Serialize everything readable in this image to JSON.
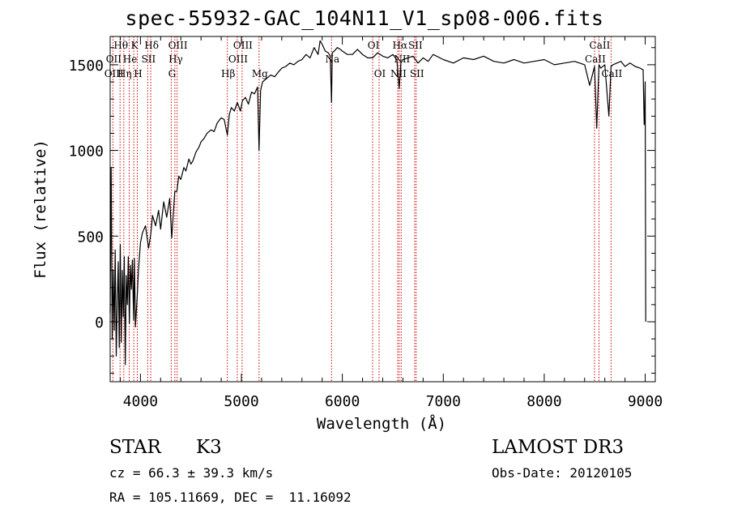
{
  "chart_data": {
    "type": "line",
    "title": "spec-55932-GAC_104N11_V1_sp08-006.fits",
    "xlabel": "Wavelength (Å)",
    "ylabel": "Flux (relative)",
    "xlim": [
      3700,
      9100
    ],
    "ylim": [
      -350,
      1665
    ],
    "x_ticks": [
      4000,
      5000,
      6000,
      7000,
      8000,
      9000
    ],
    "x_tick_labels": [
      "4000",
      "5000",
      "6000",
      "7000",
      "8000",
      "9000"
    ],
    "y_ticks": [
      0,
      500,
      1000,
      1500
    ],
    "y_tick_labels": [
      "0",
      "500",
      "1000",
      "1500"
    ],
    "series": [
      {
        "name": "flux",
        "x": [
          3700,
          3710,
          3720,
          3730,
          3740,
          3750,
          3760,
          3770,
          3780,
          3790,
          3800,
          3810,
          3820,
          3830,
          3840,
          3850,
          3860,
          3870,
          3880,
          3890,
          3900,
          3910,
          3920,
          3933,
          3940,
          3950,
          3968,
          3980,
          4000,
          4020,
          4050,
          4080,
          4102,
          4120,
          4150,
          4180,
          4200,
          4230,
          4260,
          4290,
          4310,
          4340,
          4360,
          4380,
          4400,
          4430,
          4450,
          4480,
          4500,
          4520,
          4550,
          4580,
          4600,
          4630,
          4660,
          4700,
          4730,
          4760,
          4800,
          4830,
          4861,
          4880,
          4900,
          4930,
          4960,
          4990,
          5010,
          5040,
          5070,
          5100,
          5130,
          5160,
          5175,
          5190,
          5210,
          5250,
          5290,
          5330,
          5370,
          5400,
          5440,
          5480,
          5520,
          5560,
          5600,
          5640,
          5680,
          5720,
          5760,
          5780,
          5800,
          5830,
          5860,
          5880,
          5893,
          5900,
          5920,
          5950,
          5980,
          6000,
          6050,
          6100,
          6150,
          6200,
          6250,
          6300,
          6350,
          6400,
          6450,
          6500,
          6540,
          6563,
          6580,
          6600,
          6650,
          6700,
          6750,
          6800,
          6850,
          6900,
          7000,
          7100,
          7200,
          7300,
          7400,
          7500,
          7600,
          7700,
          7800,
          7900,
          8000,
          8100,
          8200,
          8300,
          8400,
          8450,
          8498,
          8520,
          8542,
          8560,
          8600,
          8640,
          8662,
          8680,
          8720,
          8760,
          8800,
          8850,
          8900,
          8950,
          8980,
          8990,
          8995,
          9000,
          9005
        ],
        "y": [
          50,
          900,
          -100,
          300,
          -50,
          420,
          -200,
          100,
          350,
          -150,
          450,
          -120,
          300,
          30,
          380,
          -250,
          270,
          100,
          380,
          -10,
          330,
          190,
          360,
          10,
          370,
          -30,
          150,
          300,
          460,
          520,
          560,
          430,
          510,
          620,
          560,
          650,
          540,
          700,
          610,
          720,
          490,
          760,
          760,
          850,
          830,
          900,
          880,
          950,
          920,
          940,
          990,
          1020,
          1050,
          1070,
          1100,
          1120,
          1110,
          1160,
          1190,
          1180,
          1090,
          1210,
          1250,
          1230,
          1280,
          1230,
          1290,
          1310,
          1270,
          1340,
          1330,
          1370,
          1000,
          1350,
          1400,
          1420,
          1440,
          1430,
          1460,
          1480,
          1490,
          1510,
          1500,
          1520,
          1530,
          1560,
          1540,
          1600,
          1560,
          1640,
          1620,
          1580,
          1570,
          1550,
          1280,
          1570,
          1580,
          1600,
          1590,
          1580,
          1560,
          1560,
          1590,
          1560,
          1540,
          1540,
          1570,
          1550,
          1540,
          1560,
          1530,
          1360,
          1510,
          1530,
          1540,
          1550,
          1510,
          1540,
          1520,
          1560,
          1530,
          1510,
          1540,
          1530,
          1550,
          1520,
          1510,
          1530,
          1510,
          1520,
          1530,
          1500,
          1510,
          1520,
          1500,
          1380,
          1490,
          1130,
          1500,
          1480,
          1500,
          1200,
          1490,
          1500,
          1510,
          1520,
          1490,
          1510,
          1490,
          1480,
          1470,
          1150,
          1200,
          1400,
          0
        ]
      }
    ],
    "line_labels": [
      {
        "text": "Hθ",
        "wavelength": 3798,
        "row": 1
      },
      {
        "text": "OII",
        "wavelength": 3727,
        "row": 2
      },
      {
        "text": "OIII",
        "wavelength": 3730,
        "row": 3
      },
      {
        "text": "K",
        "wavelength": 3934,
        "row": 1
      },
      {
        "text": "He",
        "wavelength": 3889,
        "row": 2
      },
      {
        "text": "Hη",
        "wavelength": 3835,
        "row": 3
      },
      {
        "text": "Hδ",
        "wavelength": 4102,
        "row": 1
      },
      {
        "text": "SII",
        "wavelength": 4072,
        "row": 2
      },
      {
        "text": "H",
        "wavelength": 3969,
        "row": 3
      },
      {
        "text": "OIII",
        "wavelength": 4363,
        "row": 1
      },
      {
        "text": "Hγ",
        "wavelength": 4341,
        "row": 2
      },
      {
        "text": "G",
        "wavelength": 4305,
        "row": 3
      },
      {
        "text": "OIII",
        "wavelength": 5007,
        "row": 1
      },
      {
        "text": "OIII",
        "wavelength": 4959,
        "row": 2
      },
      {
        "text": "Hβ",
        "wavelength": 4861,
        "row": 3
      },
      {
        "text": "Mg",
        "wavelength": 5175,
        "row": 3
      },
      {
        "text": "Na",
        "wavelength": 5893,
        "row": 2
      },
      {
        "text": "OI",
        "wavelength": 6300,
        "row": 1
      },
      {
        "text": "OI",
        "wavelength": 6364,
        "row": 3
      },
      {
        "text": "Hα",
        "wavelength": 6563,
        "row": 1
      },
      {
        "text": "SII",
        "wavelength": 6716,
        "row": 1
      },
      {
        "text": "NII",
        "wavelength": 6583,
        "row": 2
      },
      {
        "text": "NII",
        "wavelength": 6548,
        "row": 3
      },
      {
        "text": "SII",
        "wavelength": 6731,
        "row": 3
      },
      {
        "text": "CaII",
        "wavelength": 8542,
        "row": 1
      },
      {
        "text": "CaII",
        "wavelength": 8498,
        "row": 2
      },
      {
        "text": "CaII",
        "wavelength": 8662,
        "row": 3
      }
    ],
    "line_markers": [
      3727,
      3798,
      3835,
      3889,
      3934,
      3969,
      4072,
      4102,
      4305,
      4341,
      4363,
      4861,
      4959,
      5007,
      5175,
      5893,
      6300,
      6364,
      6548,
      6563,
      6583,
      6716,
      6731,
      8498,
      8542,
      8662
    ]
  },
  "info": {
    "object_class": "STAR",
    "subclass": "K3",
    "redshift": "cz = 66.3 ± 39.3 km/s",
    "coords": "RA = 105.11669, DEC =  11.16092",
    "survey": "LAMOST DR3",
    "obs_date": "Obs-Date: 20120105"
  },
  "colors": {
    "axis": "#000000",
    "spectrum": "#000000",
    "line_marker": "#cc0000",
    "background": "#ffffff"
  }
}
